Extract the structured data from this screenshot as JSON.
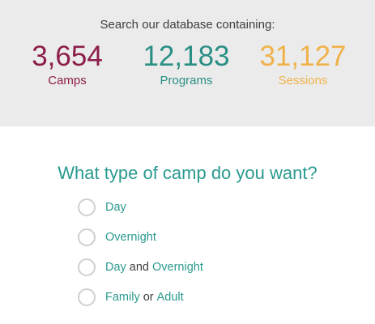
{
  "stats": {
    "intro": "Search our database containing:",
    "items": [
      {
        "number": "3,654",
        "label": "Camps",
        "color": "#8c1c4a"
      },
      {
        "number": "12,183",
        "label": "Programs",
        "color": "#2a8f85"
      },
      {
        "number": "31,127",
        "label": "Sessions",
        "color": "#f0b24a"
      }
    ]
  },
  "question": "What type of camp do you want?",
  "options": [
    {
      "parts": [
        "Day"
      ]
    },
    {
      "parts": [
        "Overnight"
      ]
    },
    {
      "parts": [
        "Day",
        "and",
        "Overnight"
      ]
    },
    {
      "parts": [
        "Family",
        "or",
        "Adult"
      ]
    }
  ]
}
